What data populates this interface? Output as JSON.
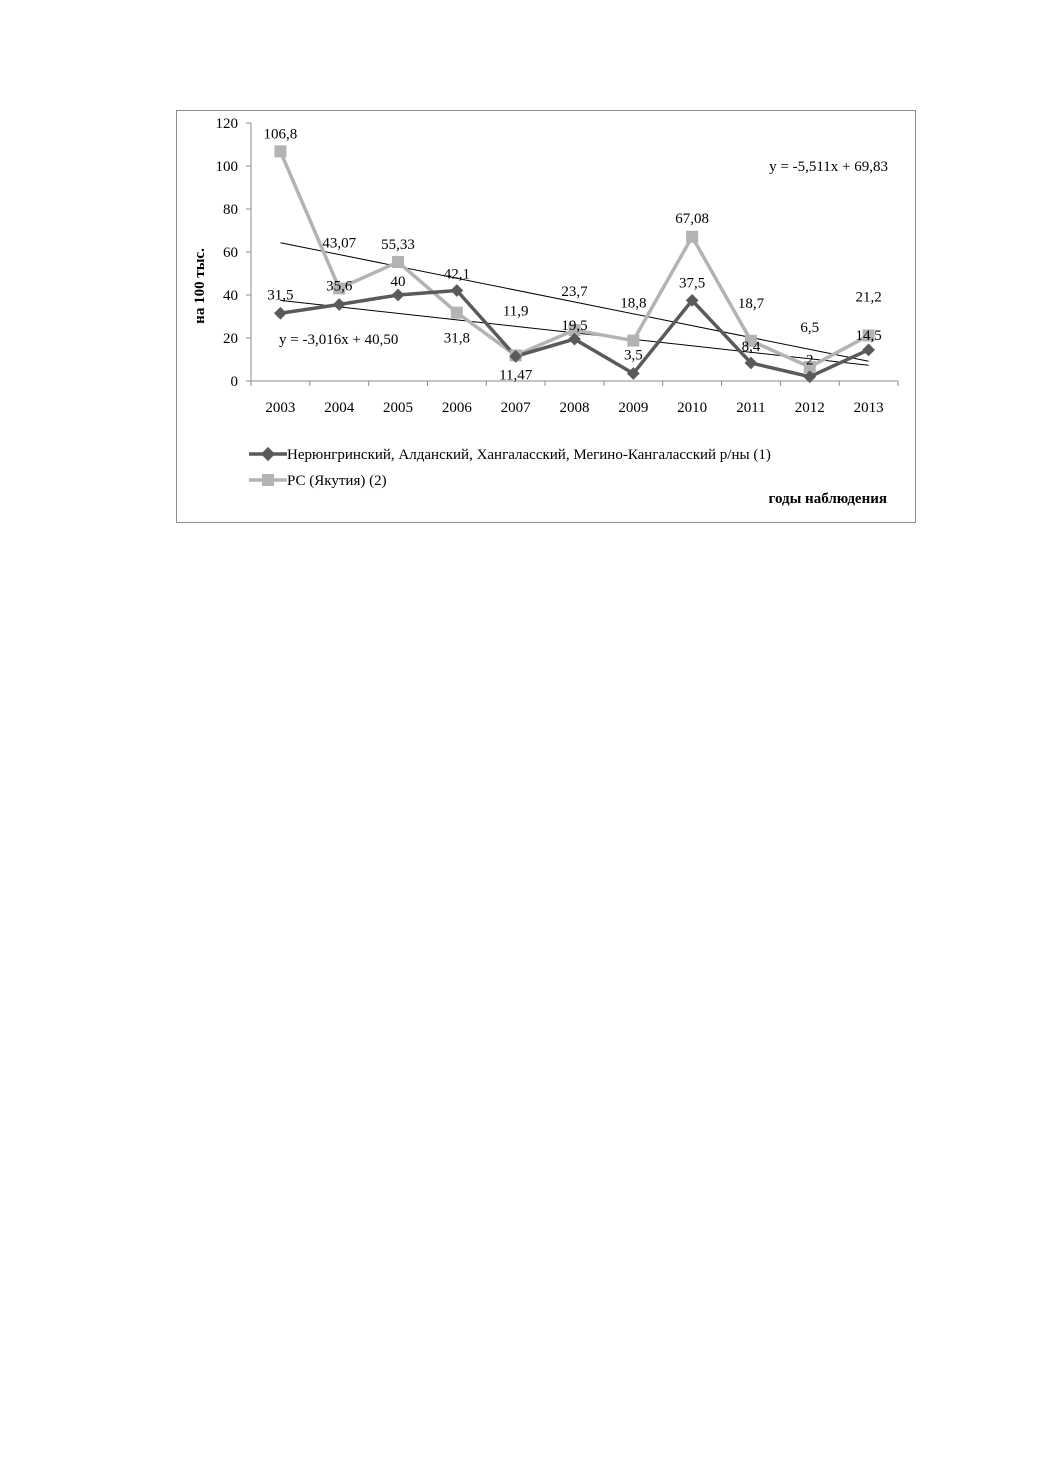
{
  "chart_data": {
    "type": "line",
    "ylabel": "на 100 тыс.",
    "xlabel": "годы наблюдения",
    "ylim": [
      0,
      120
    ],
    "yticks": [
      "0",
      "20",
      "40",
      "60",
      "80",
      "100",
      "120"
    ],
    "categories": [
      "2003",
      "2004",
      "2005",
      "2006",
      "2007",
      "2008",
      "2009",
      "2010",
      "2011",
      "2012",
      "2013"
    ],
    "grid": false,
    "legend_position": "bottom-left",
    "series": [
      {
        "name": "Нерюнгринский, Алданский, Хангаласский, Мегино-Кангаласский р/ны (1)",
        "color": "#5a5a5a",
        "marker": "diamond",
        "values": [
          31.5,
          35.6,
          40,
          42.1,
          11.47,
          19.5,
          3.5,
          37.5,
          8.4,
          2,
          14.5
        ],
        "labels": [
          "31,5",
          "35,6",
          "40",
          "42,1",
          "11,47",
          "19,5",
          "3,5",
          "37,5",
          "8,4",
          "2",
          "14,5"
        ],
        "trend": {
          "equation": "y = -3,016x + 40,50",
          "slope": -3.016,
          "intercept": 40.5
        }
      },
      {
        "name": "РС (Якутия) (2)",
        "color": "#b3b3b3",
        "marker": "square",
        "values": [
          106.8,
          43.07,
          55.33,
          31.8,
          11.9,
          23.7,
          18.8,
          67.08,
          18.7,
          6.5,
          21.2
        ],
        "labels": [
          "106,8",
          "43,07",
          "55,33",
          "31,8",
          "11,9",
          "23,7",
          "18,8",
          "67,08",
          "18,7",
          "6,5",
          "21,2"
        ],
        "trend": {
          "equation": "y = -5,511x + 69,83",
          "slope": -5.511,
          "intercept": 69.83
        }
      }
    ]
  }
}
